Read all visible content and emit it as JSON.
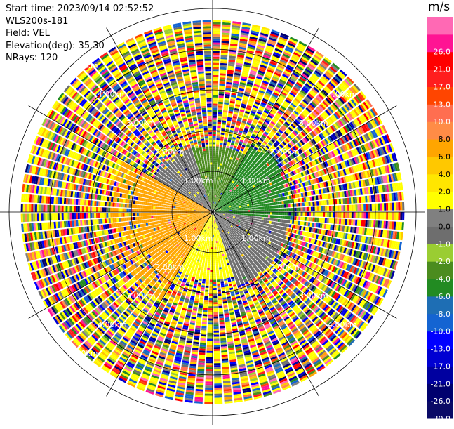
{
  "header": {
    "start_time": "Start time: 2023/09/14 02:52:52",
    "instrument": "WLS200s-181",
    "field": "Field: VEL",
    "elevation": "Elevation(deg): 35.30",
    "nrays": "NRays: 120"
  },
  "colorbar": {
    "unit": "m/s",
    "levels": [
      -30.0,
      -26.0,
      -21.0,
      -17.0,
      -13.0,
      -10.0,
      -8.0,
      -6.0,
      -4.0,
      -2.0,
      -1.0,
      0.0,
      1.0,
      2.0,
      4.0,
      6.0,
      8.0,
      10.0,
      13.0,
      17.0,
      21.0,
      26.0
    ],
    "labels": [
      "-30.0",
      "-26.0",
      "-21.0",
      "-17.0",
      "-13.0",
      "-10.0",
      "-8.0",
      "-6.0",
      "-4.0",
      "-2.0",
      "-1.0",
      "0.0",
      "1.0",
      "2.0",
      "4.0",
      "6.0",
      "8.0",
      "10.0",
      "13.0",
      "17.0",
      "21.0",
      "26.0"
    ],
    "colors": [
      "#0a0a66",
      "#00006e",
      "#0000a0",
      "#0000d2",
      "#0000ff",
      "#1464d2",
      "#1e6eb4",
      "#228b22",
      "#4b8c1e",
      "#9acd32",
      "#6e6e6e",
      "#808080",
      "#ffff00",
      "#ffe600",
      "#ffc800",
      "#ffa500",
      "#ff8c46",
      "#ff6e50",
      "#ff4500",
      "#ff1e1e",
      "#ff0000",
      "#ff1493",
      "#ff69b4"
    ]
  },
  "chart_data": {
    "type": "ppi",
    "field": "VEL",
    "nrays": 120,
    "range_rings_km": [
      1.0,
      2.0,
      3.0,
      4.0,
      5.0
    ],
    "ring_labels": [
      "1.00km",
      "2.00km",
      "3.00km",
      "4.00km",
      "5.00km"
    ],
    "spokes_deg": [
      0,
      30,
      60,
      90,
      120,
      150,
      180,
      210,
      240,
      270,
      300,
      330
    ],
    "sectors": [
      {
        "from_deg": 340,
        "to_deg": 30,
        "max_km": 1.9,
        "value": -6.0
      },
      {
        "from_deg": 30,
        "to_deg": 95,
        "max_km": 2.4,
        "value": -8.0
      },
      {
        "from_deg": 95,
        "to_deg": 160,
        "max_km": 2.3,
        "value": -2.0
      },
      {
        "from_deg": 160,
        "to_deg": 210,
        "max_km": 2.0,
        "value": 0.0
      },
      {
        "from_deg": 210,
        "to_deg": 300,
        "max_km": 3.1,
        "value": 4.0
      },
      {
        "from_deg": 300,
        "to_deg": 340,
        "max_km": 2.0,
        "value": -2.0
      }
    ],
    "noise_start_km": 3.0,
    "max_range_km": 5.6
  }
}
